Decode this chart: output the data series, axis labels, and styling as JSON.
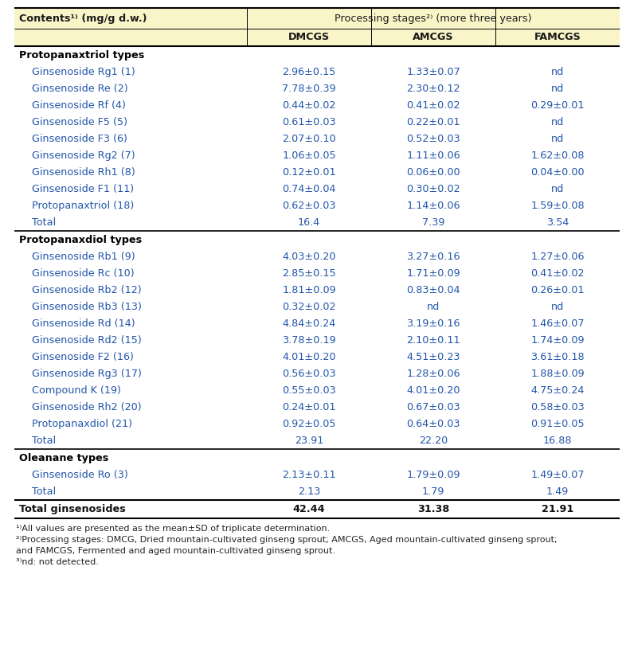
{
  "header_bg": "#faf5c8",
  "col_header": [
    "Contents¹⁾ (mg/g d.w.)",
    "DMCGS",
    "AMCGS",
    "FAMCGS"
  ],
  "processing_header": "Processing stages²⁾ (more three years)",
  "sections": [
    {
      "section_title": "Protopanaxtriol types",
      "rows": [
        [
          "Ginsenoside Rg1 (1)",
          "2.96±0.15",
          "1.33±0.07",
          "nd"
        ],
        [
          "Ginsenoside Re (2)",
          "7.78±0.39",
          "2.30±0.12",
          "nd"
        ],
        [
          "Ginsenoside Rf (4)",
          "0.44±0.02",
          "0.41±0.02",
          "0.29±0.01"
        ],
        [
          "Ginsenoside F5 (5)",
          "0.61±0.03",
          "0.22±0.01",
          "nd"
        ],
        [
          "Ginsenoside F3 (6)",
          "2.07±0.10",
          "0.52±0.03",
          "nd"
        ],
        [
          "Ginsenoside Rg2 (7)",
          "1.06±0.05",
          "1.11±0.06",
          "1.62±0.08"
        ],
        [
          "Ginsenoside Rh1 (8)",
          "0.12±0.01",
          "0.06±0.00",
          "0.04±0.00"
        ],
        [
          "Ginsenoside F1 (11)",
          "0.74±0.04",
          "0.30±0.02",
          "nd"
        ],
        [
          "Protopanaxtriol (18)",
          "0.62±0.03",
          "1.14±0.06",
          "1.59±0.08"
        ],
        [
          "Total",
          "16.4",
          "7.39",
          "3.54"
        ]
      ]
    },
    {
      "section_title": "Protopanaxdiol types",
      "rows": [
        [
          "Ginsenoside Rb1 (9)",
          "4.03±0.20",
          "3.27±0.16",
          "1.27±0.06"
        ],
        [
          "Ginsenoside Rc (10)",
          "2.85±0.15",
          "1.71±0.09",
          "0.41±0.02"
        ],
        [
          "Ginsenoside Rb2 (12)",
          "1.81±0.09",
          "0.83±0.04",
          "0.26±0.01"
        ],
        [
          "Ginsenoside Rb3 (13)",
          "0.32±0.02",
          "nd",
          "nd"
        ],
        [
          "Ginsenoside Rd (14)",
          "4.84±0.24",
          "3.19±0.16",
          "1.46±0.07"
        ],
        [
          "Ginsenoside Rd2 (15)",
          "3.78±0.19",
          "2.10±0.11",
          "1.74±0.09"
        ],
        [
          "Ginsenoside F2 (16)",
          "4.01±0.20",
          "4.51±0.23",
          "3.61±0.18"
        ],
        [
          "Ginsenoside Rg3 (17)",
          "0.56±0.03",
          "1.28±0.06",
          "1.88±0.09"
        ],
        [
          "Compound K (19)",
          "0.55±0.03",
          "4.01±0.20",
          "4.75±0.24"
        ],
        [
          "Ginsenoside Rh2 (20)",
          "0.24±0.01",
          "0.67±0.03",
          "0.58±0.03"
        ],
        [
          "Protopanaxdiol (21)",
          "0.92±0.05",
          "0.64±0.03",
          "0.91±0.05"
        ],
        [
          "Total",
          "23.91",
          "22.20",
          "16.88"
        ]
      ]
    },
    {
      "section_title": "Oleanane types",
      "rows": [
        [
          "Ginsenoside Ro (3)",
          "2.13±0.11",
          "1.79±0.09",
          "1.49±0.07"
        ],
        [
          "Total",
          "2.13",
          "1.79",
          "1.49"
        ]
      ]
    }
  ],
  "grand_total_row": [
    "Total ginsenosides",
    "42.44",
    "31.38",
    "21.91"
  ],
  "footnote1": "¹⁾All values are presented as the mean±SD of triplicate determination.",
  "footnote2a": "²⁾Processing stages: DMCG, Dried mountain-cultivated ginseng sprout; AMCGS, Aged mountain-cultivated ginseng sprout;",
  "footnote2b": "and FAMCGS, Fermented and aged mountain-cultivated ginseng sprout.",
  "footnote3": "³⁾nd: not detected.",
  "header_text_color": "#1a1a1a",
  "section_title_color": "#000000",
  "data_text_color": "#2255aa",
  "grand_total_text_color": "#111111"
}
